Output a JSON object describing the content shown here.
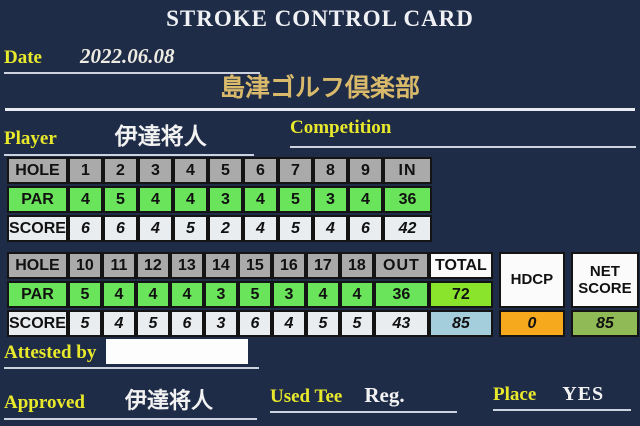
{
  "colors": {
    "background": "#1e2c48",
    "label_yellow": "#e9e92c",
    "club_gold": "#d9ba6b",
    "text_white": "#f2f2f2",
    "header_gray": "#aaaaaa",
    "par_green": "#6ae45b",
    "score_row_bg": "#e9edf0",
    "total_par_green": "#8ae42c",
    "total_score_blue": "#a5cedd",
    "hdcp_orange": "#f6a91c",
    "net_olive": "#90ba55"
  },
  "header": {
    "title": "STROKE CONTROL CARD",
    "date_label": "Date",
    "date_value": "2022.06.08",
    "club_name": "島津ゴルフ倶楽部"
  },
  "player_row": {
    "player_label": "Player",
    "player_name": "伊達将人",
    "competition_label": "Competition"
  },
  "row_headers": {
    "hole": "HOLE",
    "par": "PAR",
    "score": "SCORE"
  },
  "front_nine": {
    "holes": [
      "1",
      "2",
      "3",
      "4",
      "5",
      "6",
      "7",
      "8",
      "9"
    ],
    "sum_label": "IN",
    "pars": [
      "4",
      "5",
      "4",
      "4",
      "3",
      "4",
      "5",
      "3",
      "4"
    ],
    "par_sum": "36",
    "scores": [
      "6",
      "6",
      "4",
      "5",
      "2",
      "4",
      "5",
      "4",
      "6"
    ],
    "score_sum": "42"
  },
  "back_nine": {
    "holes": [
      "10",
      "11",
      "12",
      "13",
      "14",
      "15",
      "16",
      "17",
      "18"
    ],
    "sum_label": "OUT",
    "pars": [
      "5",
      "4",
      "4",
      "4",
      "3",
      "5",
      "3",
      "4",
      "4"
    ],
    "par_sum": "36",
    "scores": [
      "5",
      "4",
      "5",
      "6",
      "3",
      "6",
      "4",
      "5",
      "5"
    ],
    "score_sum": "43"
  },
  "totals": {
    "total_label": "TOTAL",
    "par_total": "72",
    "score_total": "85",
    "hdcp_label": "HDCP",
    "hdcp_value": "0",
    "net_label": "NET SCORE",
    "net_value": "85"
  },
  "footer": {
    "attested_label": "Attested by",
    "approved_label": "Approved",
    "approved_name": "伊達将人",
    "used_tee_label": "Used Tee",
    "used_tee_value": "Reg.",
    "place_label": "Place",
    "place_value": "YES"
  }
}
